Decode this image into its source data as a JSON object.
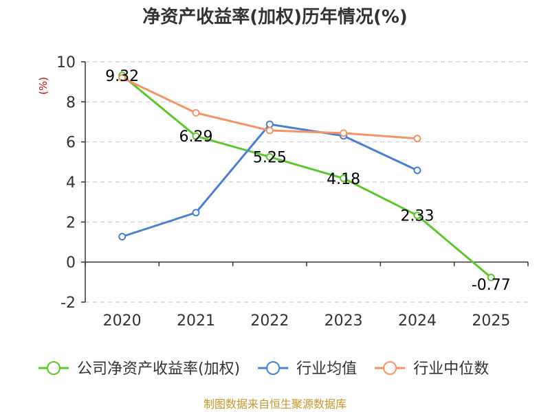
{
  "chart_data": {
    "type": "line",
    "title": "净资产收益率(加权)历年情况(%)",
    "ylabel": "(%)",
    "xlabel": "",
    "categories": [
      "2020",
      "2021",
      "2022",
      "2023",
      "2024",
      "2025"
    ],
    "ylim": [
      -2,
      10
    ],
    "yticks": [
      "10",
      "8",
      "6",
      "4",
      "2",
      "0",
      "-2"
    ],
    "grid": true,
    "legend_position": "bottom",
    "series": [
      {
        "name": "公司净资产收益率(加权)",
        "color": "#5cc72a",
        "values": [
          9.32,
          6.29,
          5.25,
          4.18,
          2.33,
          -0.77
        ],
        "labels": [
          "9.32",
          "6.29",
          "5.25",
          "4.18",
          "2.33",
          "-0.77"
        ]
      },
      {
        "name": "行业均值",
        "color": "#4a7fd6",
        "values": [
          1.27,
          2.47,
          6.88,
          6.3,
          4.58,
          null
        ]
      },
      {
        "name": "行业中位数",
        "color": "#f59366",
        "values": [
          9.2,
          7.45,
          6.57,
          6.44,
          6.17,
          null
        ]
      }
    ],
    "source": "制图数据来自恒生聚源数据库"
  }
}
